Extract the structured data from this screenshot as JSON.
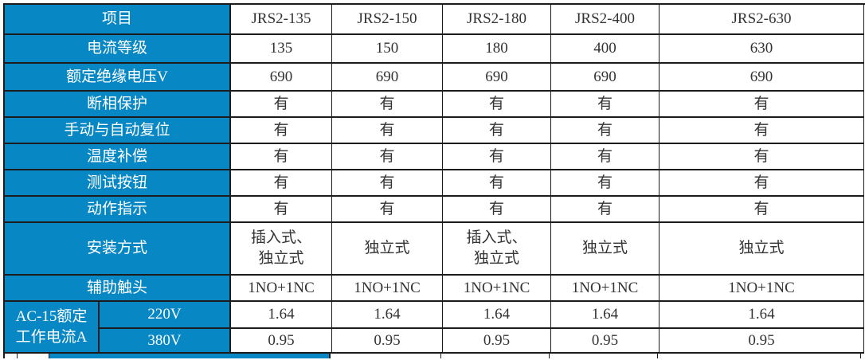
{
  "colors": {
    "header_bg": "#0887c5",
    "header_text": "#ffffff",
    "value_text": "#333333",
    "border": "#1c1c1c"
  },
  "table": {
    "header": {
      "item_label": "项目",
      "models": [
        "JRS2-135",
        "JRS2-150",
        "JRS2-180",
        "JRS2-400",
        "JRS2-630"
      ]
    },
    "rows": [
      {
        "id": "current-rating",
        "label": "电流等级",
        "values": [
          "135",
          "150",
          "180",
          "400",
          "630"
        ]
      },
      {
        "id": "rated-insulation-voltage",
        "label": "额定绝缘电压V",
        "values": [
          "690",
          "690",
          "690",
          "690",
          "690"
        ]
      },
      {
        "id": "phase-failure-protection",
        "label": "断相保护",
        "values": [
          "有",
          "有",
          "有",
          "有",
          "有"
        ]
      },
      {
        "id": "manual-auto-reset",
        "label": "手动与自动复位",
        "values": [
          "有",
          "有",
          "有",
          "有",
          "有"
        ]
      },
      {
        "id": "temperature-compensation",
        "label": "温度补偿",
        "values": [
          "有",
          "有",
          "有",
          "有",
          "有"
        ]
      },
      {
        "id": "test-button",
        "label": "测试按钮",
        "values": [
          "有",
          "有",
          "有",
          "有",
          "有"
        ]
      },
      {
        "id": "action-indication",
        "label": "动作指示",
        "values": [
          "有",
          "有",
          "有",
          "有",
          "有"
        ]
      },
      {
        "id": "mounting-type",
        "label": "安装方式",
        "values": [
          [
            "插入式、",
            "独立式"
          ],
          "独立式",
          [
            "插入式、",
            "独立式"
          ],
          "独立式",
          "独立式"
        ]
      },
      {
        "id": "auxiliary-contact",
        "label": "辅助触头",
        "values": [
          "1NO+1NC",
          "1NO+1NC",
          "1NO+1NC",
          "1NO+1NC",
          "1NO+1NC"
        ]
      }
    ],
    "group": {
      "id": "ac15-rated-operating-current",
      "label_lines": [
        "AC-15额定",
        "工作电流A"
      ],
      "rows": [
        {
          "id": "220v",
          "sublabel": "220V",
          "values": [
            "1.64",
            "1.64",
            "1.64",
            "1.64",
            "1.64"
          ]
        },
        {
          "id": "380v",
          "sublabel": "380V",
          "values": [
            "0.95",
            "0.95",
            "0.95",
            "0.95",
            "0.95"
          ]
        }
      ]
    }
  }
}
